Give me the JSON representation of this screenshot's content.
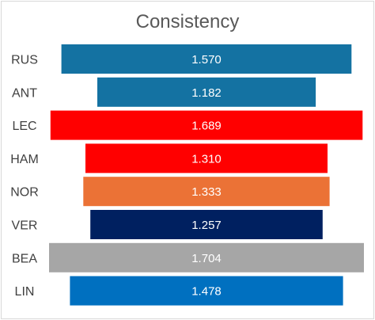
{
  "chart_data": {
    "type": "bar",
    "orientation": "horizontal-centered",
    "title": "Consistency",
    "categories": [
      "RUS",
      "ANT",
      "LEC",
      "HAM",
      "NOR",
      "VER",
      "BEA",
      "LIN"
    ],
    "values": [
      1.57,
      1.182,
      1.689,
      1.31,
      1.333,
      1.257,
      1.704,
      1.478
    ],
    "value_labels": [
      "1.570",
      "1.182",
      "1.689",
      "1.310",
      "1.333",
      "1.257",
      "1.704",
      "1.478"
    ],
    "colors": [
      "#1472a2",
      "#1472a2",
      "#ff0000",
      "#ff0000",
      "#eb7236",
      "#002060",
      "#a6a6a6",
      "#0070c0"
    ],
    "xlim": [
      0,
      1.704
    ],
    "grid": false,
    "legend": "none"
  }
}
